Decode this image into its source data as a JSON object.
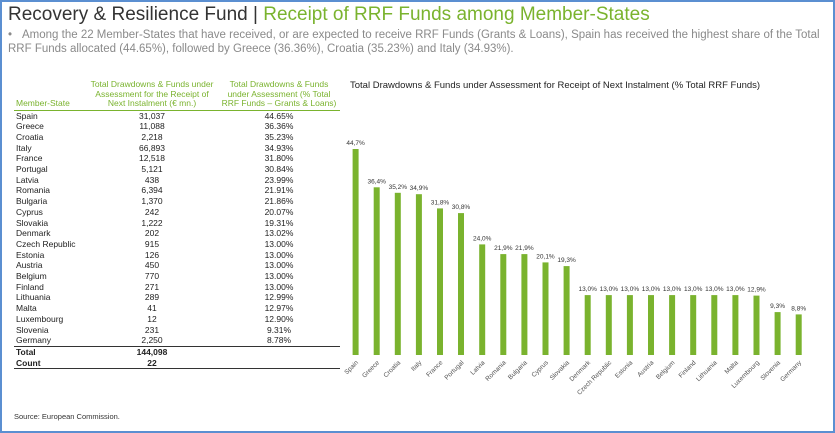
{
  "header": {
    "title_main": "Recovery & Resilience Fund | ",
    "title_accent": "Receipt of RRF Funds among Member-States",
    "bullet_symbol": "•",
    "bullet_text": "Among the 22 Member-States that have received, or are expected to receive RRF Funds (Grants & Loans), Spain has received the highest share of the Total RRF Funds allocated (44.65%), followed by Greece (36.36%), Croatia (35.23%) and Italy (34.93%)."
  },
  "table": {
    "headers": [
      "Member-State",
      "Total Drawdowns & Funds under Assessment for the Receipt of Next Instalment (€ mn.)",
      "Total Drawdowns & Funds under Assessment (% Total RRF Funds – Grants & Loans)"
    ],
    "rows": [
      [
        "Spain",
        "31,037",
        "44.65%"
      ],
      [
        "Greece",
        "11,088",
        "36.36%"
      ],
      [
        "Croatia",
        "2,218",
        "35.23%"
      ],
      [
        "Italy",
        "66,893",
        "34.93%"
      ],
      [
        "France",
        "12,518",
        "31.80%"
      ],
      [
        "Portugal",
        "5,121",
        "30.84%"
      ],
      [
        "Latvia",
        "438",
        "23.99%"
      ],
      [
        "Romania",
        "6,394",
        "21.91%"
      ],
      [
        "Bulgaria",
        "1,370",
        "21.86%"
      ],
      [
        "Cyprus",
        "242",
        "20.07%"
      ],
      [
        "Slovakia",
        "1,222",
        "19.31%"
      ],
      [
        "Denmark",
        "202",
        "13.02%"
      ],
      [
        "Czech Republic",
        "915",
        "13.00%"
      ],
      [
        "Estonia",
        "126",
        "13.00%"
      ],
      [
        "Austria",
        "450",
        "13.00%"
      ],
      [
        "Belgium",
        "770",
        "13.00%"
      ],
      [
        "Finland",
        "271",
        "13.00%"
      ],
      [
        "Lithuania",
        "289",
        "12.99%"
      ],
      [
        "Malta",
        "41",
        "12.97%"
      ],
      [
        "Luxembourg",
        "12",
        "12.90%"
      ],
      [
        "Slovenia",
        "231",
        "9.31%"
      ],
      [
        "Germany",
        "2,250",
        "8.78%"
      ]
    ],
    "total": [
      "Total",
      "144,098",
      ""
    ],
    "count": [
      "Count",
      "22",
      ""
    ]
  },
  "source": "Source: European Commission.",
  "colors": {
    "accent": "#7ab32e",
    "bar": "#7ab32e",
    "border": "#5b8fd1"
  },
  "chart_data": {
    "type": "bar",
    "title": "Total Drawdowns & Funds under Assessment for  Receipt of Next Instalment (% Total RRF Funds)",
    "categories": [
      "Spain",
      "Greece",
      "Croatia",
      "Italy",
      "France",
      "Portugal",
      "Latvia",
      "Romania",
      "Bulgaria",
      "Cyprus",
      "Slovakia",
      "Denmark",
      "Czech Republic",
      "Estonia",
      "Austria",
      "Belgium",
      "Finland",
      "Lithuania",
      "Malta",
      "Luxembourg",
      "Slovenia",
      "Germany"
    ],
    "values": [
      44.7,
      36.4,
      35.2,
      34.9,
      31.8,
      30.8,
      24.0,
      21.9,
      21.9,
      20.1,
      19.3,
      13.0,
      13.0,
      13.0,
      13.0,
      13.0,
      13.0,
      13.0,
      13.0,
      12.9,
      9.3,
      8.8
    ],
    "labels": [
      "44,7%",
      "36,4%",
      "35,2%",
      "34,9%",
      "31,8%",
      "30,8%",
      "24,0%",
      "21,9%",
      "21,9%",
      "20,1%",
      "19,3%",
      "13,0%",
      "13,0%",
      "13,0%",
      "13,0%",
      "13,0%",
      "13,0%",
      "13,0%",
      "13,0%",
      "12,9%",
      "9,3%",
      "8,8%"
    ],
    "ylim": [
      0,
      50
    ],
    "grid": false,
    "legend": "none"
  }
}
